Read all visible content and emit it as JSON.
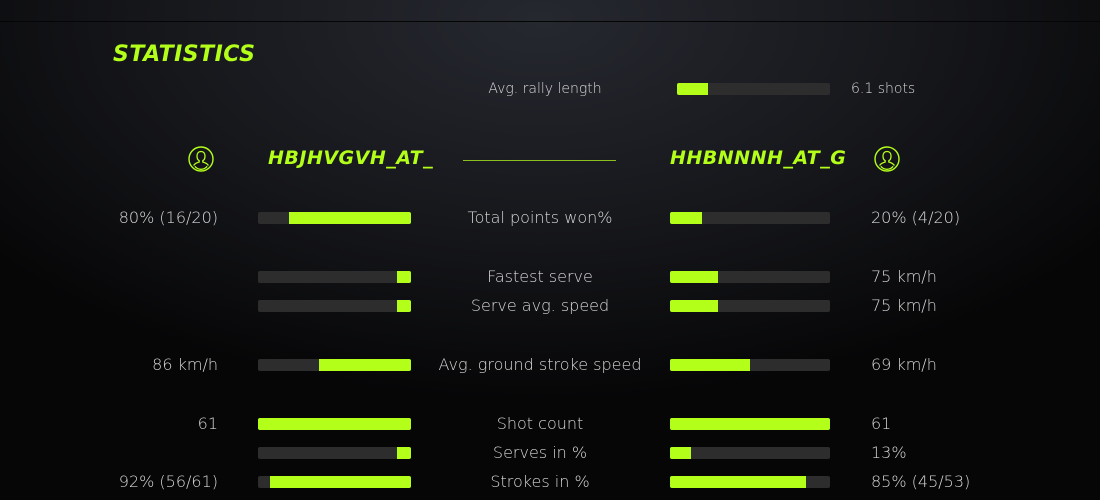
{
  "title": "STATISTICS",
  "accent_color": "#b3ff1a",
  "track_color": "#2e2d2d",
  "rally": {
    "label": "Avg. rally length",
    "value": "6.1 shots",
    "fill": 0.2
  },
  "players": {
    "left": {
      "name": "HBJHVGVH_AT_",
      "icon": "user-circle-icon"
    },
    "right": {
      "name": "HHBNNNH_AT_G",
      "icon": "user-circle-icon"
    }
  },
  "stats": [
    {
      "label": "Total points won%",
      "left": "80% (16/20)",
      "right": "20% (4/20)",
      "left_fill": 0.8,
      "right_fill": 0.2
    },
    {
      "label": "Fastest serve",
      "left": "",
      "right": "75 km/h",
      "left_fill": 0.09,
      "right_fill": 0.3
    },
    {
      "label": "Serve avg. speed",
      "left": "",
      "right": "75 km/h",
      "left_fill": 0.09,
      "right_fill": 0.3
    },
    {
      "label": "Avg. ground stroke speed",
      "left": "86 km/h",
      "right": "69 km/h",
      "left_fill": 0.6,
      "right_fill": 0.5
    },
    {
      "label": "Shot count",
      "left": "61",
      "right": "61",
      "left_fill": 1.0,
      "right_fill": 1.0
    },
    {
      "label": "Serves in %",
      "left": "",
      "right": "13%",
      "left_fill": 0.09,
      "right_fill": 0.13
    },
    {
      "label": "Strokes in %",
      "left": "92% (56/61)",
      "right": "85% (45/53)",
      "left_fill": 0.92,
      "right_fill": 0.85
    }
  ]
}
